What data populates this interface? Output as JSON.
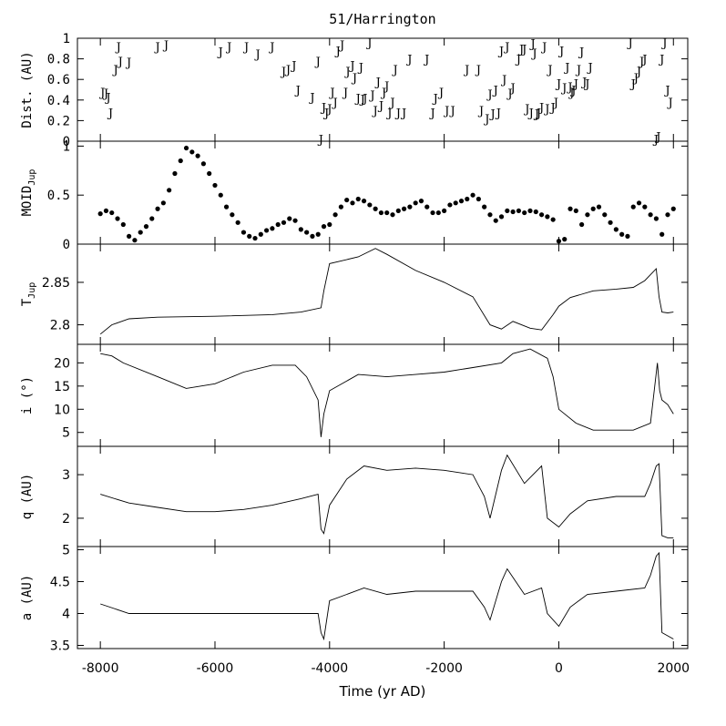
{
  "chart_data": {
    "title": "51/Harrington",
    "xlabel": "Time (yr AD)",
    "xlim": [
      -8400,
      2250
    ],
    "xticks": [
      -8000,
      -6000,
      -4000,
      -2000,
      0,
      2000
    ],
    "xtick_labels": [
      "-8000",
      "-6000",
      "-4000",
      "-2000",
      "0",
      "2000"
    ],
    "panels": [
      {
        "id": "dist",
        "type": "scatter",
        "marker": "J",
        "ylabel": "Dist. (AU)",
        "ylim": [
          0,
          1
        ],
        "yticks": [
          0,
          0.2,
          0.4,
          0.6,
          0.8,
          1
        ],
        "ytick_labels": [
          "0",
          "0.2",
          "0.4",
          "0.6",
          "0.8",
          "1"
        ],
        "points": [
          [
            -7960,
            0.48
          ],
          [
            -7900,
            0.47
          ],
          [
            -7860,
            0.43
          ],
          [
            -7820,
            0.28
          ],
          [
            -7730,
            0.7
          ],
          [
            -7680,
            0.92
          ],
          [
            -7650,
            0.78
          ],
          [
            -7500,
            0.77
          ],
          [
            -7000,
            0.92
          ],
          [
            -6850,
            0.94
          ],
          [
            -5900,
            0.87
          ],
          [
            -5750,
            0.92
          ],
          [
            -5450,
            0.92
          ],
          [
            -5250,
            0.85
          ],
          [
            -5000,
            0.92
          ],
          [
            -4800,
            0.68
          ],
          [
            -4720,
            0.7
          ],
          [
            -4620,
            0.74
          ],
          [
            -4550,
            0.5
          ],
          [
            -4300,
            0.43
          ],
          [
            -4200,
            0.78
          ],
          [
            -4150,
            0.02
          ],
          [
            -4100,
            0.33
          ],
          [
            -4050,
            0.28
          ],
          [
            -4000,
            0.32
          ],
          [
            -3950,
            0.48
          ],
          [
            -3900,
            0.38
          ],
          [
            -3850,
            0.88
          ],
          [
            -3780,
            0.94
          ],
          [
            -3720,
            0.48
          ],
          [
            -3680,
            0.68
          ],
          [
            -3600,
            0.74
          ],
          [
            -3560,
            0.62
          ],
          [
            -3500,
            0.42
          ],
          [
            -3450,
            0.72
          ],
          [
            -3420,
            0.41
          ],
          [
            -3380,
            0.42
          ],
          [
            -3300,
            0.96
          ],
          [
            -3250,
            0.45
          ],
          [
            -3200,
            0.3
          ],
          [
            -3150,
            0.58
          ],
          [
            -3100,
            0.35
          ],
          [
            -3050,
            0.48
          ],
          [
            -3000,
            0.54
          ],
          [
            -2950,
            0.28
          ],
          [
            -2900,
            0.38
          ],
          [
            -2850,
            0.7
          ],
          [
            -2800,
            0.28
          ],
          [
            -2700,
            0.28
          ],
          [
            -2600,
            0.8
          ],
          [
            -2300,
            0.8
          ],
          [
            -2200,
            0.28
          ],
          [
            -2150,
            0.42
          ],
          [
            -2050,
            0.48
          ],
          [
            -1950,
            0.3
          ],
          [
            -1850,
            0.3
          ],
          [
            -1600,
            0.7
          ],
          [
            -1400,
            0.7
          ],
          [
            -1350,
            0.3
          ],
          [
            -1250,
            0.22
          ],
          [
            -1200,
            0.46
          ],
          [
            -1150,
            0.27
          ],
          [
            -1100,
            0.5
          ],
          [
            -1050,
            0.28
          ],
          [
            -1000,
            0.88
          ],
          [
            -950,
            0.6
          ],
          [
            -900,
            0.92
          ],
          [
            -850,
            0.47
          ],
          [
            -800,
            0.52
          ],
          [
            -700,
            0.8
          ],
          [
            -650,
            0.9
          ],
          [
            -600,
            0.9
          ],
          [
            -550,
            0.32
          ],
          [
            -480,
            0.28
          ],
          [
            -450,
            0.95
          ],
          [
            -420,
            0.86
          ],
          [
            -380,
            0.27
          ],
          [
            -350,
            0.28
          ],
          [
            -300,
            0.33
          ],
          [
            -250,
            0.92
          ],
          [
            -200,
            0.32
          ],
          [
            -150,
            0.7
          ],
          [
            -100,
            0.33
          ],
          [
            -50,
            0.38
          ],
          [
            0,
            0.56
          ],
          [
            50,
            0.88
          ],
          [
            100,
            0.52
          ],
          [
            150,
            0.72
          ],
          [
            200,
            0.53
          ],
          [
            230,
            0.48
          ],
          [
            260,
            0.5
          ],
          [
            300,
            0.56
          ],
          [
            350,
            0.7
          ],
          [
            400,
            0.87
          ],
          [
            450,
            0.58
          ],
          [
            500,
            0.56
          ],
          [
            550,
            0.72
          ],
          [
            1250,
            0.96
          ],
          [
            1300,
            0.56
          ],
          [
            1350,
            0.62
          ],
          [
            1400,
            0.68
          ],
          [
            1450,
            0.78
          ],
          [
            1500,
            0.8
          ],
          [
            1700,
            0.02
          ],
          [
            1740,
            0.05
          ],
          [
            1800,
            0.8
          ],
          [
            1850,
            0.96
          ],
          [
            1900,
            0.5
          ],
          [
            1950,
            0.38
          ]
        ]
      },
      {
        "id": "moid",
        "type": "scatter",
        "marker": "dot",
        "ylabel": "MOID",
        "ylabel_sub": "Jup",
        "ylim": [
          0,
          1.05
        ],
        "yticks": [
          0,
          0.5,
          1
        ],
        "ytick_labels": [
          "0",
          "0.5",
          "1"
        ],
        "points": [
          [
            -8000,
            0.31
          ],
          [
            -7900,
            0.34
          ],
          [
            -7800,
            0.32
          ],
          [
            -7700,
            0.26
          ],
          [
            -7600,
            0.2
          ],
          [
            -7500,
            0.08
          ],
          [
            -7400,
            0.04
          ],
          [
            -7300,
            0.12
          ],
          [
            -7200,
            0.18
          ],
          [
            -7100,
            0.26
          ],
          [
            -7000,
            0.36
          ],
          [
            -6900,
            0.42
          ],
          [
            -6800,
            0.55
          ],
          [
            -6700,
            0.72
          ],
          [
            -6600,
            0.85
          ],
          [
            -6500,
            0.98
          ],
          [
            -6400,
            0.94
          ],
          [
            -6300,
            0.9
          ],
          [
            -6200,
            0.82
          ],
          [
            -6100,
            0.72
          ],
          [
            -6000,
            0.6
          ],
          [
            -5900,
            0.5
          ],
          [
            -5800,
            0.38
          ],
          [
            -5700,
            0.3
          ],
          [
            -5600,
            0.22
          ],
          [
            -5500,
            0.12
          ],
          [
            -5400,
            0.08
          ],
          [
            -5300,
            0.06
          ],
          [
            -5200,
            0.1
          ],
          [
            -5100,
            0.14
          ],
          [
            -5000,
            0.16
          ],
          [
            -4900,
            0.2
          ],
          [
            -4800,
            0.22
          ],
          [
            -4700,
            0.26
          ],
          [
            -4600,
            0.24
          ],
          [
            -4500,
            0.15
          ],
          [
            -4400,
            0.12
          ],
          [
            -4300,
            0.08
          ],
          [
            -4200,
            0.1
          ],
          [
            -4100,
            0.18
          ],
          [
            -4000,
            0.2
          ],
          [
            -3900,
            0.3
          ],
          [
            -3800,
            0.38
          ],
          [
            -3700,
            0.45
          ],
          [
            -3600,
            0.42
          ],
          [
            -3500,
            0.46
          ],
          [
            -3400,
            0.44
          ],
          [
            -3300,
            0.4
          ],
          [
            -3200,
            0.36
          ],
          [
            -3100,
            0.32
          ],
          [
            -3000,
            0.32
          ],
          [
            -2900,
            0.3
          ],
          [
            -2800,
            0.34
          ],
          [
            -2700,
            0.36
          ],
          [
            -2600,
            0.38
          ],
          [
            -2500,
            0.42
          ],
          [
            -2400,
            0.44
          ],
          [
            -2300,
            0.38
          ],
          [
            -2200,
            0.32
          ],
          [
            -2100,
            0.32
          ],
          [
            -2000,
            0.34
          ],
          [
            -1900,
            0.4
          ],
          [
            -1800,
            0.42
          ],
          [
            -1700,
            0.44
          ],
          [
            -1600,
            0.46
          ],
          [
            -1500,
            0.5
          ],
          [
            -1400,
            0.46
          ],
          [
            -1300,
            0.38
          ],
          [
            -1200,
            0.3
          ],
          [
            -1100,
            0.24
          ],
          [
            -1000,
            0.28
          ],
          [
            -900,
            0.34
          ],
          [
            -800,
            0.33
          ],
          [
            -700,
            0.34
          ],
          [
            -600,
            0.32
          ],
          [
            -500,
            0.34
          ],
          [
            -400,
            0.33
          ],
          [
            -300,
            0.3
          ],
          [
            -200,
            0.28
          ],
          [
            -100,
            0.25
          ],
          [
            0,
            0.03
          ],
          [
            100,
            0.05
          ],
          [
            200,
            0.36
          ],
          [
            300,
            0.34
          ],
          [
            400,
            0.2
          ],
          [
            500,
            0.3
          ],
          [
            600,
            0.36
          ],
          [
            700,
            0.38
          ],
          [
            800,
            0.3
          ],
          [
            900,
            0.22
          ],
          [
            1000,
            0.15
          ],
          [
            1100,
            0.1
          ],
          [
            1200,
            0.08
          ],
          [
            1300,
            0.38
          ],
          [
            1400,
            0.42
          ],
          [
            1500,
            0.38
          ],
          [
            1600,
            0.3
          ],
          [
            1700,
            0.26
          ],
          [
            1800,
            0.1
          ],
          [
            1900,
            0.3
          ],
          [
            2000,
            0.36
          ]
        ]
      },
      {
        "id": "tjup",
        "type": "line",
        "ylabel": "T",
        "ylabel_sub": "Jup",
        "ylim": [
          2.777,
          2.895
        ],
        "yticks": [
          2.8,
          2.85
        ],
        "ytick_labels": [
          "2.8",
          "2.85"
        ],
        "x": [
          -8000,
          -7800,
          -7500,
          -7000,
          -6000,
          -5000,
          -4500,
          -4150,
          -4100,
          -4000,
          -3500,
          -3200,
          -3000,
          -2500,
          -2000,
          -1500,
          -1200,
          -1000,
          -800,
          -500,
          -300,
          -100,
          0,
          200,
          400,
          600,
          1000,
          1300,
          1500,
          1700,
          1750,
          1800,
          1900,
          2000
        ],
        "y": [
          2.789,
          2.8,
          2.807,
          2.809,
          2.81,
          2.812,
          2.815,
          2.82,
          2.84,
          2.872,
          2.88,
          2.89,
          2.883,
          2.864,
          2.85,
          2.833,
          2.8,
          2.795,
          2.804,
          2.796,
          2.794,
          2.812,
          2.822,
          2.832,
          2.836,
          2.84,
          2.842,
          2.844,
          2.852,
          2.866,
          2.833,
          2.815,
          2.814,
          2.815
        ]
      },
      {
        "id": "incl",
        "type": "line",
        "ylabel": "i (°)",
        "ylim": [
          2,
          24
        ],
        "yticks": [
          5,
          10,
          15,
          20
        ],
        "ytick_labels": [
          "5",
          "10",
          "15",
          "20"
        ],
        "x": [
          -8000,
          -7800,
          -7600,
          -7000,
          -6500,
          -6000,
          -5500,
          -5000,
          -4600,
          -4400,
          -4200,
          -4150,
          -4100,
          -4000,
          -3500,
          -3000,
          -2500,
          -2000,
          -1500,
          -1000,
          -800,
          -500,
          -200,
          -100,
          0,
          300,
          600,
          1000,
          1300,
          1600,
          1720,
          1760,
          1800,
          1900,
          2000
        ],
        "y": [
          22,
          21.5,
          20,
          17,
          14.5,
          15.5,
          18,
          19.5,
          19.5,
          17,
          12,
          4,
          9,
          14,
          17.5,
          17,
          17.5,
          18,
          19,
          20,
          22,
          23,
          21,
          17,
          10,
          7,
          5.5,
          5.5,
          5.5,
          7,
          20,
          14,
          12,
          11,
          9
        ]
      },
      {
        "id": "q",
        "type": "line",
        "ylabel": "q (AU)",
        "ylim": [
          1.35,
          3.65
        ],
        "yticks": [
          2,
          3
        ],
        "ytick_labels": [
          "2",
          "3"
        ],
        "x": [
          -8000,
          -7500,
          -7000,
          -6500,
          -6000,
          -5500,
          -5000,
          -4500,
          -4200,
          -4150,
          -4100,
          -4000,
          -3700,
          -3400,
          -3000,
          -2500,
          -2000,
          -1500,
          -1300,
          -1200,
          -1000,
          -900,
          -600,
          -300,
          -200,
          0,
          200,
          500,
          1000,
          1500,
          1600,
          1700,
          1750,
          1800,
          1900,
          2000
        ],
        "y": [
          2.55,
          2.35,
          2.25,
          2.15,
          2.15,
          2.2,
          2.3,
          2.45,
          2.55,
          1.75,
          1.65,
          2.3,
          2.9,
          3.2,
          3.1,
          3.15,
          3.1,
          3.0,
          2.5,
          2.0,
          3.1,
          3.45,
          2.8,
          3.2,
          2.0,
          1.8,
          2.1,
          2.4,
          2.5,
          2.5,
          2.8,
          3.2,
          3.25,
          1.6,
          1.55,
          1.55
        ]
      },
      {
        "id": "a",
        "type": "line",
        "ylabel": "a (AU)",
        "ylim": [
          3.45,
          5.05
        ],
        "yticks": [
          3.5,
          4,
          4.5,
          5
        ],
        "ytick_labels": [
          "3.5",
          "4",
          "4.5",
          "5"
        ],
        "x": [
          -8000,
          -7500,
          -7000,
          -6500,
          -6000,
          -5500,
          -5000,
          -4500,
          -4200,
          -4150,
          -4100,
          -4000,
          -3700,
          -3400,
          -3000,
          -2500,
          -2000,
          -1500,
          -1300,
          -1200,
          -1000,
          -900,
          -600,
          -300,
          -200,
          0,
          200,
          500,
          1000,
          1500,
          1600,
          1700,
          1750,
          1800,
          1900,
          2000
        ],
        "y": [
          4.15,
          4.0,
          4.0,
          4.0,
          4.0,
          4.0,
          4.0,
          4.0,
          4.0,
          3.7,
          3.6,
          4.2,
          4.3,
          4.4,
          4.3,
          4.35,
          4.35,
          4.35,
          4.1,
          3.9,
          4.5,
          4.7,
          4.3,
          4.4,
          4.0,
          3.8,
          4.1,
          4.3,
          4.35,
          4.4,
          4.6,
          4.9,
          4.95,
          3.7,
          3.65,
          3.6
        ]
      }
    ]
  }
}
